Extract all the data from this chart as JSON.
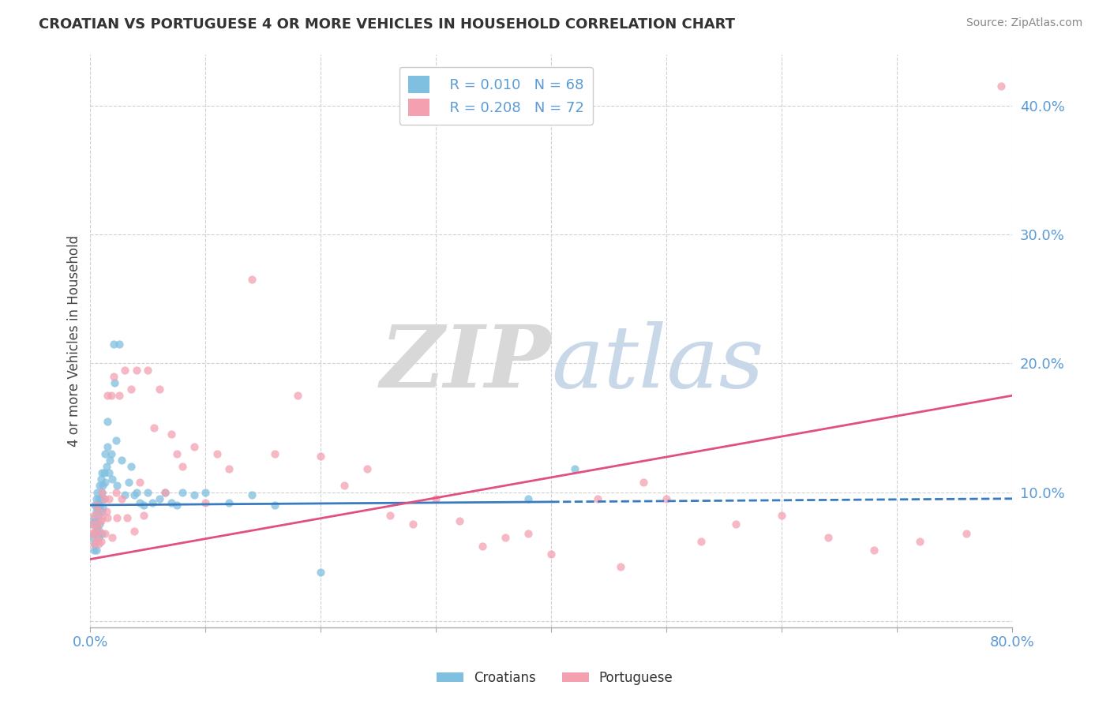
{
  "title": "CROATIAN VS PORTUGUESE 4 OR MORE VEHICLES IN HOUSEHOLD CORRELATION CHART",
  "source": "Source: ZipAtlas.com",
  "ylabel": "4 or more Vehicles in Household",
  "xlim": [
    0.0,
    0.8
  ],
  "ylim": [
    -0.005,
    0.44
  ],
  "xticks": [
    0.0,
    0.1,
    0.2,
    0.3,
    0.4,
    0.5,
    0.6,
    0.7,
    0.8
  ],
  "xticklabels": [
    "0.0%",
    "",
    "",
    "",
    "",
    "",
    "",
    "",
    "80.0%"
  ],
  "yticks": [
    0.0,
    0.1,
    0.2,
    0.3,
    0.4
  ],
  "yticklabels": [
    "",
    "10.0%",
    "20.0%",
    "30.0%",
    "40.0%"
  ],
  "croatian_color": "#7fbfdf",
  "portuguese_color": "#f4a0b0",
  "trend_croatian_color": "#3a7bbf",
  "trend_portuguese_color": "#e05080",
  "background_color": "#ffffff",
  "legend_R_croatian": "R = 0.010",
  "legend_N_croatian": "N = 68",
  "legend_R_portuguese": "R = 0.208",
  "legend_N_portuguese": "N = 72",
  "croatian_x": [
    0.002,
    0.002,
    0.003,
    0.003,
    0.003,
    0.004,
    0.004,
    0.004,
    0.005,
    0.005,
    0.005,
    0.005,
    0.006,
    0.006,
    0.006,
    0.007,
    0.007,
    0.007,
    0.008,
    0.008,
    0.008,
    0.009,
    0.009,
    0.01,
    0.01,
    0.01,
    0.01,
    0.011,
    0.011,
    0.012,
    0.012,
    0.013,
    0.013,
    0.014,
    0.015,
    0.015,
    0.016,
    0.017,
    0.018,
    0.019,
    0.02,
    0.021,
    0.022,
    0.023,
    0.025,
    0.027,
    0.03,
    0.033,
    0.035,
    0.038,
    0.04,
    0.043,
    0.046,
    0.05,
    0.054,
    0.06,
    0.065,
    0.07,
    0.075,
    0.08,
    0.09,
    0.1,
    0.12,
    0.14,
    0.16,
    0.2,
    0.38,
    0.42
  ],
  "croatian_y": [
    0.075,
    0.065,
    0.08,
    0.068,
    0.055,
    0.09,
    0.078,
    0.06,
    0.095,
    0.085,
    0.07,
    0.055,
    0.1,
    0.088,
    0.072,
    0.095,
    0.082,
    0.065,
    0.105,
    0.09,
    0.075,
    0.11,
    0.095,
    0.115,
    0.1,
    0.085,
    0.068,
    0.105,
    0.088,
    0.115,
    0.095,
    0.13,
    0.108,
    0.12,
    0.155,
    0.135,
    0.115,
    0.125,
    0.13,
    0.11,
    0.215,
    0.185,
    0.14,
    0.105,
    0.215,
    0.125,
    0.098,
    0.108,
    0.12,
    0.098,
    0.1,
    0.092,
    0.09,
    0.1,
    0.092,
    0.095,
    0.1,
    0.092,
    0.09,
    0.1,
    0.098,
    0.1,
    0.092,
    0.098,
    0.09,
    0.038,
    0.095,
    0.118
  ],
  "portuguese_x": [
    0.001,
    0.002,
    0.003,
    0.003,
    0.004,
    0.005,
    0.005,
    0.006,
    0.007,
    0.007,
    0.008,
    0.009,
    0.009,
    0.01,
    0.01,
    0.012,
    0.013,
    0.014,
    0.015,
    0.015,
    0.016,
    0.018,
    0.019,
    0.02,
    0.022,
    0.023,
    0.025,
    0.027,
    0.03,
    0.032,
    0.035,
    0.038,
    0.04,
    0.043,
    0.046,
    0.05,
    0.055,
    0.06,
    0.065,
    0.07,
    0.075,
    0.08,
    0.09,
    0.1,
    0.11,
    0.12,
    0.14,
    0.16,
    0.18,
    0.2,
    0.22,
    0.24,
    0.26,
    0.28,
    0.3,
    0.32,
    0.34,
    0.36,
    0.38,
    0.4,
    0.44,
    0.46,
    0.48,
    0.5,
    0.53,
    0.56,
    0.6,
    0.64,
    0.68,
    0.72,
    0.76,
    0.79
  ],
  "portuguese_y": [
    0.068,
    0.075,
    0.06,
    0.082,
    0.07,
    0.065,
    0.09,
    0.075,
    0.06,
    0.085,
    0.07,
    0.078,
    0.062,
    0.1,
    0.08,
    0.095,
    0.068,
    0.085,
    0.175,
    0.08,
    0.095,
    0.175,
    0.065,
    0.19,
    0.1,
    0.08,
    0.175,
    0.095,
    0.195,
    0.08,
    0.18,
    0.07,
    0.195,
    0.108,
    0.082,
    0.195,
    0.15,
    0.18,
    0.1,
    0.145,
    0.13,
    0.12,
    0.135,
    0.092,
    0.13,
    0.118,
    0.265,
    0.13,
    0.175,
    0.128,
    0.105,
    0.118,
    0.082,
    0.075,
    0.095,
    0.078,
    0.058,
    0.065,
    0.068,
    0.052,
    0.095,
    0.042,
    0.108,
    0.095,
    0.062,
    0.075,
    0.082,
    0.065,
    0.055,
    0.062,
    0.068,
    0.415
  ],
  "trend_croatian_solid_end": 0.4,
  "trend_portuguese_start_y": 0.048,
  "trend_portuguese_end_y": 0.175
}
